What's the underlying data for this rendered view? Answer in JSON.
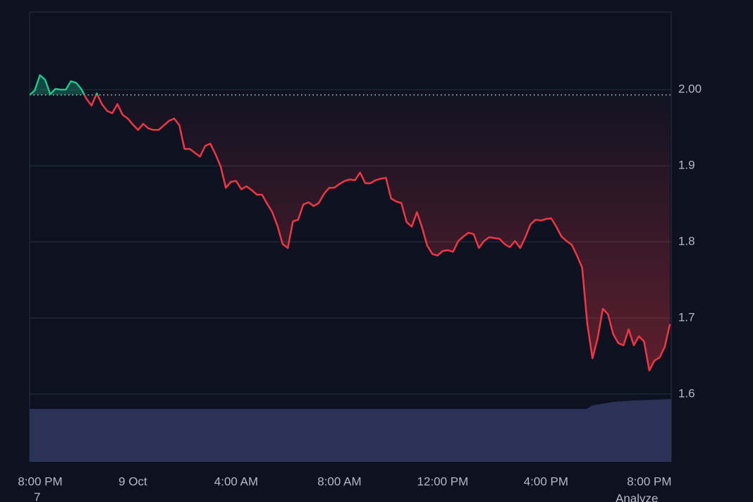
{
  "chart_data": {
    "type": "line",
    "x": [
      0,
      0.2,
      0.4,
      0.6,
      0.8,
      1,
      1.2,
      1.4,
      1.6,
      1.8,
      2,
      2.2,
      2.4,
      2.6,
      2.8,
      3,
      3.2,
      3.4,
      3.6,
      3.8,
      4,
      4.2,
      4.4,
      4.6,
      4.8,
      5,
      5.2,
      5.4,
      5.6,
      5.8,
      6,
      6.2,
      6.4,
      6.6,
      6.8,
      7,
      7.2,
      7.4,
      7.6,
      7.8,
      8,
      8.2,
      8.4,
      8.6,
      8.8,
      9,
      9.2,
      9.4,
      9.6,
      9.8,
      10,
      10.2,
      10.4,
      10.6,
      10.8,
      11,
      11.2,
      11.4,
      11.6,
      11.8,
      12,
      12.2,
      12.4,
      12.6,
      12.8,
      13,
      13.2,
      13.4,
      13.6,
      13.8,
      14,
      14.2,
      14.4,
      14.6,
      14.8,
      15,
      15.2,
      15.4,
      15.6,
      15.8,
      16,
      16.2,
      16.4,
      16.6,
      16.8,
      17,
      17.2,
      17.4,
      17.6,
      17.8,
      18,
      18.2,
      18.4,
      18.6,
      18.8,
      19,
      19.2,
      19.4,
      19.6,
      19.8,
      20,
      20.2,
      20.4,
      20.6,
      20.8,
      21,
      21.2,
      21.4,
      21.6,
      21.8,
      22,
      22.2,
      22.4,
      22.6,
      22.8,
      23,
      23.2,
      23.4,
      23.6,
      23.8,
      24,
      24.2,
      24.4,
      24.6,
      24.8
    ],
    "values": [
      1.993,
      1.999,
      2.019,
      2.013,
      1.994,
      2.001,
      2.0,
      2.0,
      2.011,
      2.009,
      2.001,
      1.988,
      1.979,
      1.995,
      1.981,
      1.972,
      1.969,
      1.981,
      1.967,
      1.962,
      1.954,
      1.947,
      1.955,
      1.949,
      1.947,
      1.947,
      1.953,
      1.959,
      1.962,
      1.953,
      1.922,
      1.922,
      1.917,
      1.912,
      1.926,
      1.929,
      1.915,
      1.899,
      1.871,
      1.879,
      1.88,
      1.869,
      1.873,
      1.868,
      1.862,
      1.862,
      1.85,
      1.839,
      1.821,
      1.797,
      1.792,
      1.827,
      1.829,
      1.849,
      1.852,
      1.847,
      1.851,
      1.863,
      1.871,
      1.871,
      1.876,
      1.88,
      1.882,
      1.881,
      1.891,
      1.877,
      1.877,
      1.881,
      1.883,
      1.884,
      1.857,
      1.853,
      1.851,
      1.826,
      1.82,
      1.839,
      1.819,
      1.795,
      1.784,
      1.782,
      1.788,
      1.789,
      1.787,
      1.801,
      1.807,
      1.812,
      1.81,
      1.792,
      1.801,
      1.806,
      1.805,
      1.804,
      1.797,
      1.793,
      1.801,
      1.792,
      1.806,
      1.823,
      1.829,
      1.828,
      1.83,
      1.831,
      1.82,
      1.807,
      1.801,
      1.796,
      1.782,
      1.766,
      1.692,
      1.647,
      1.673,
      1.712,
      1.705,
      1.679,
      1.667,
      1.664,
      1.685,
      1.664,
      1.676,
      1.669,
      1.631,
      1.644,
      1.648,
      1.662,
      1.692
    ],
    "baseline": 1.993,
    "up_color": "#22c38a",
    "down_color": "#f23645",
    "xlim": [
      0,
      24.85
    ],
    "ylim": [
      1.511,
      2.102
    ],
    "xticks": [
      {
        "value": 0,
        "label": "8:00 PM"
      },
      {
        "value": 4,
        "label": "9 Oct"
      },
      {
        "value": 8,
        "label": "4:00 AM"
      },
      {
        "value": 12,
        "label": "8:00 AM"
      },
      {
        "value": 16,
        "label": "12:00 PM"
      },
      {
        "value": 20,
        "label": "4:00 PM"
      },
      {
        "value": 24,
        "label": "8:00 PM"
      }
    ],
    "yticks": [
      {
        "value": 2,
        "label": "2.00"
      },
      1.9,
      1.8,
      1.7,
      1.6
    ],
    "grid": true,
    "date_fragment": "7",
    "button_fragment": "Analyze"
  }
}
